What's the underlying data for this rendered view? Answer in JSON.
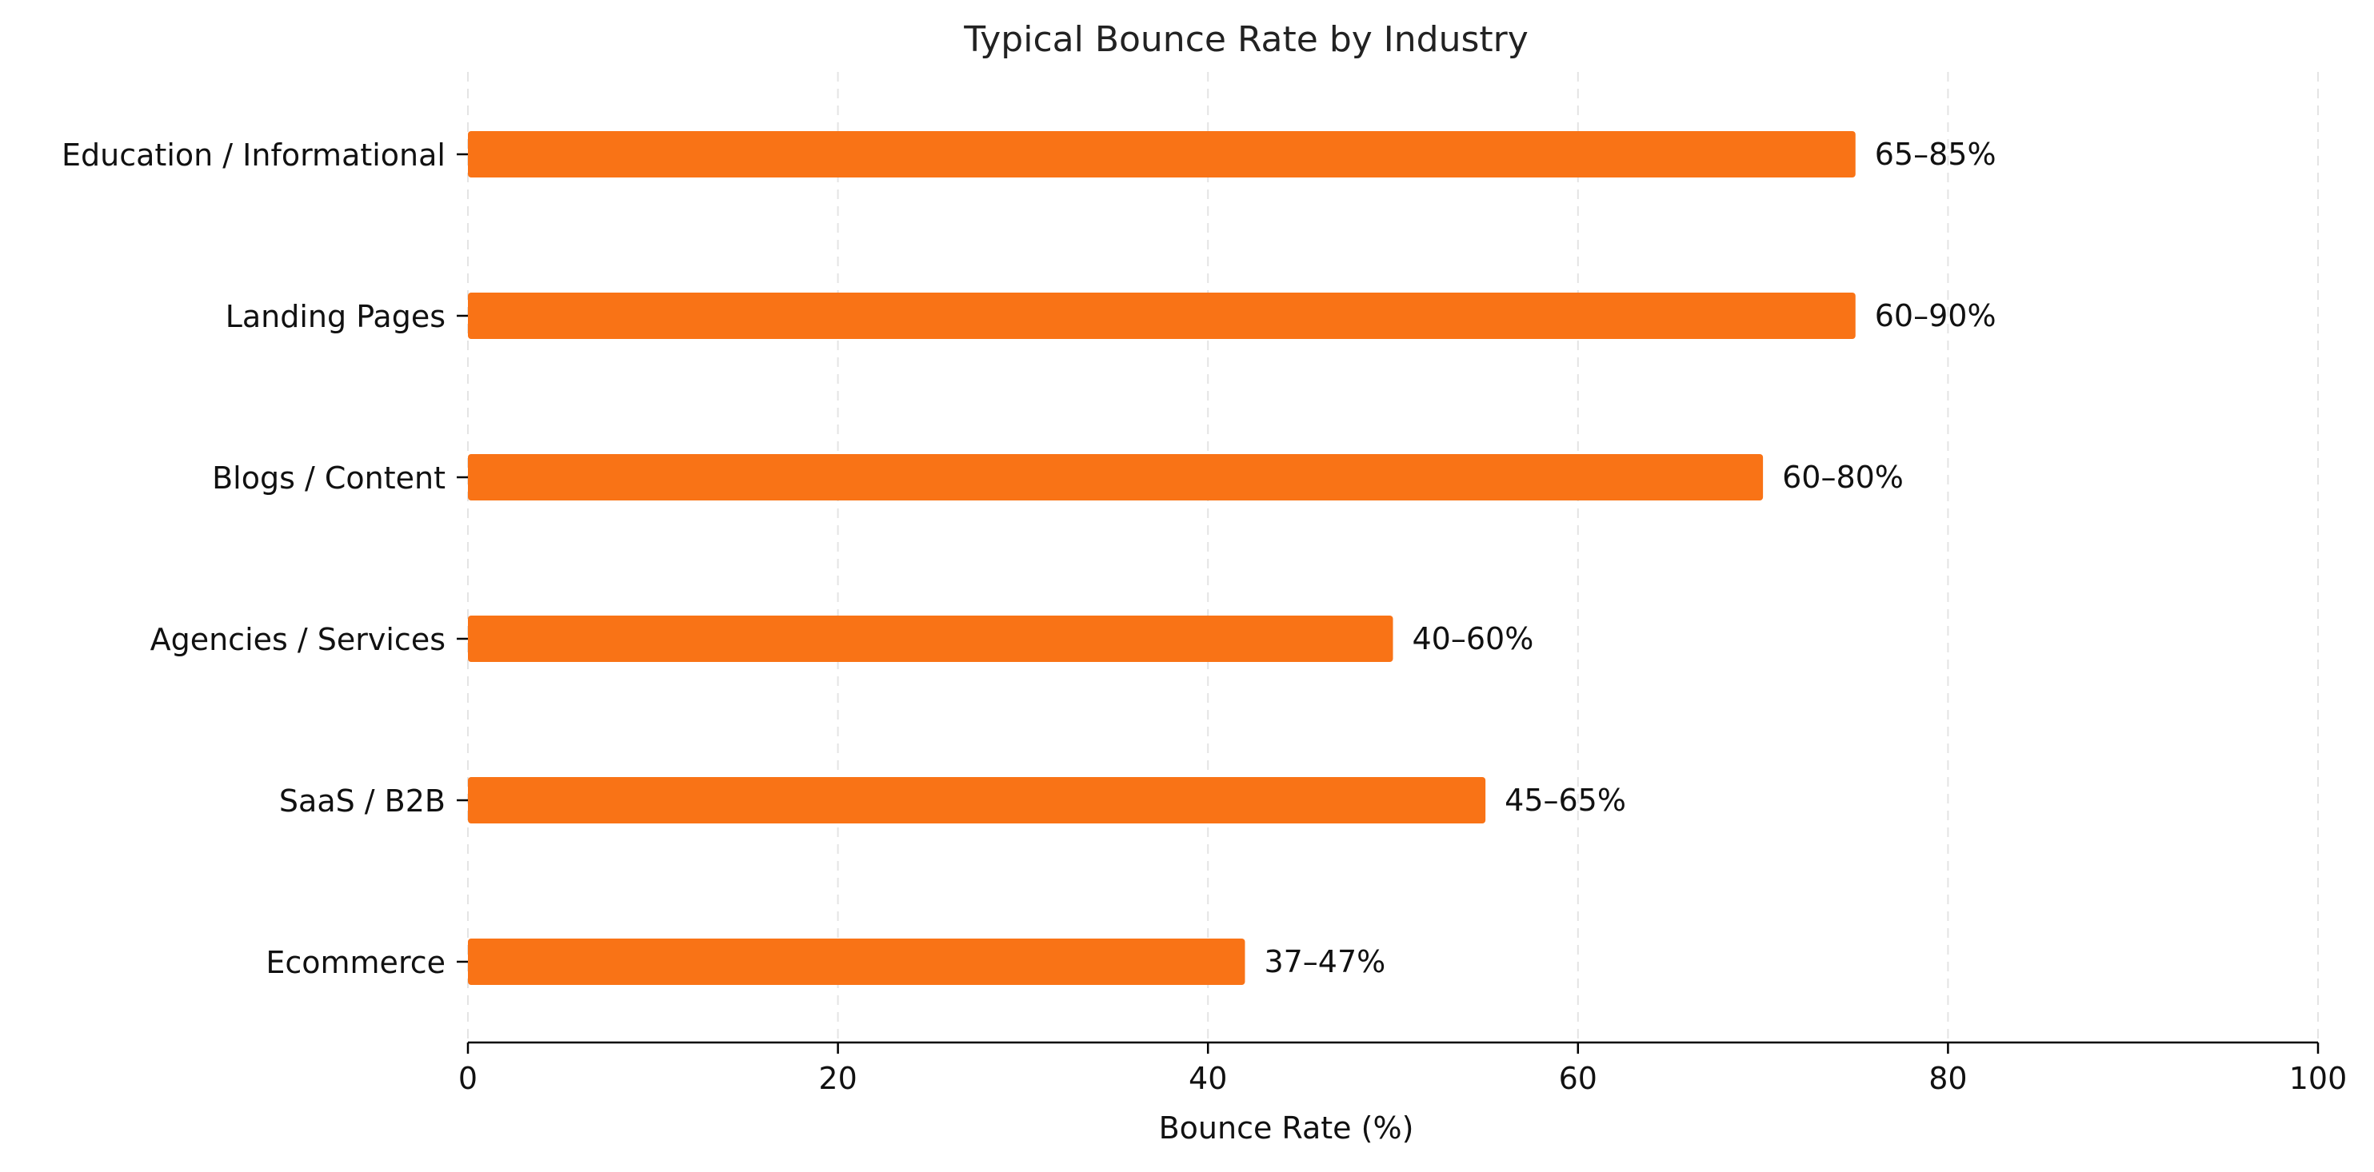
{
  "chart_data": {
    "type": "bar",
    "orientation": "horizontal",
    "title": "Typical Bounce Rate by Industry",
    "xlabel": "Bounce Rate (%)",
    "ylabel": "",
    "xlim": [
      0,
      100
    ],
    "xticks": [
      0,
      20,
      40,
      60,
      80,
      100
    ],
    "grid": "x-dashed",
    "bar_color": "#f97316",
    "categories": [
      "Education / Informational",
      "Landing Pages",
      "Blogs / Content",
      "Agencies / Services",
      "SaaS / B2B",
      "Ecommerce"
    ],
    "values": [
      75,
      75,
      70,
      50,
      55,
      42
    ],
    "labels": [
      "65–85%",
      "60–90%",
      "60–80%",
      "40–60%",
      "45–65%",
      "37–47%"
    ]
  }
}
